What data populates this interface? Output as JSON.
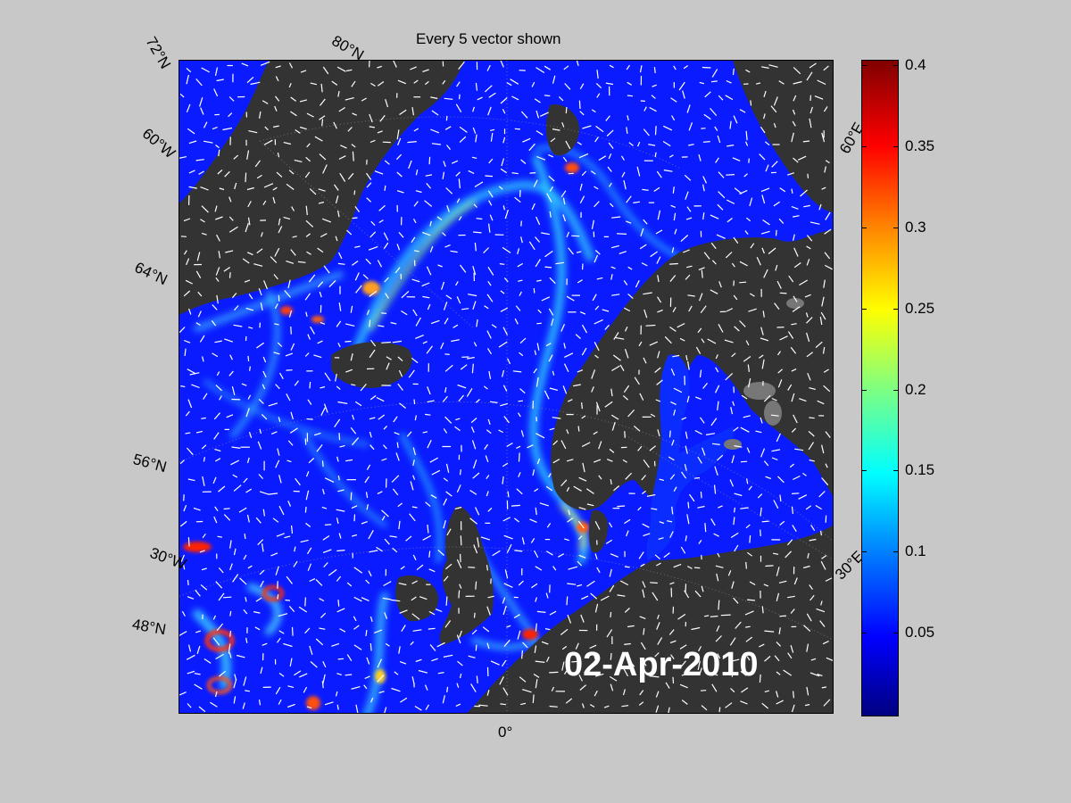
{
  "figure": {
    "title": "Every 5 vector shown",
    "date": "02-Apr-2010"
  },
  "map": {
    "ocean_color": "#0a1cff",
    "land_color": "#333333",
    "lake_color": "#777777",
    "vector_color": "#ffffff",
    "graticule_labels": {
      "lat_72n": "72°N",
      "lat_80n": "80°N",
      "lon_60w": "60°W",
      "lat_64n": "64°N",
      "lat_56n": "56°N",
      "lon_30w": "30°W",
      "lat_48n": "48°N",
      "lon_0": "0°",
      "lon_60e_top": "60°E",
      "lon_30e": "30°E"
    }
  },
  "colorbar": {
    "colormap": "jet",
    "min": 0,
    "max": 0.4,
    "ticks": [
      "0.4",
      "0.35",
      "0.3",
      "0.25",
      "0.2",
      "0.15",
      "0.1",
      "0.05"
    ]
  }
}
